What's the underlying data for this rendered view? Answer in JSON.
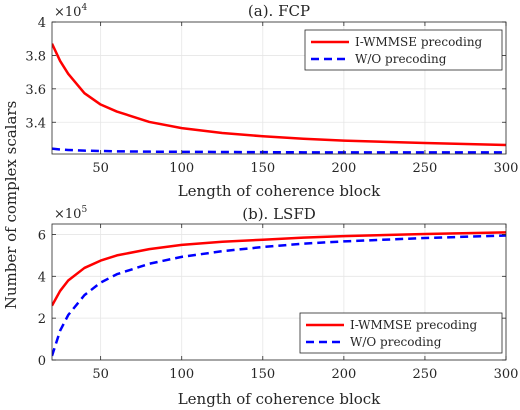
{
  "figure": {
    "ylabel": "Number of complex scalars"
  },
  "chart_data": [
    {
      "type": "line",
      "title": "(a). FCP",
      "xlabel": "Length of coherence block",
      "ylabel": "Number of complex scalars",
      "xlim": [
        20,
        300
      ],
      "ylim": [
        32100,
        40000
      ],
      "xticks": [
        "50",
        "100",
        "150",
        "200",
        "250",
        "300"
      ],
      "yticks": [
        "3.4",
        "3.6",
        "3.8",
        "4"
      ],
      "ytick_values": [
        34000,
        36000,
        38000,
        40000
      ],
      "y_multiplier": {
        "base": "×10",
        "exponent": "4"
      },
      "grid": true,
      "legend": "top-right",
      "x": [
        20,
        25,
        30,
        40,
        50,
        60,
        80,
        100,
        125,
        150,
        175,
        200,
        250,
        300
      ],
      "series": [
        {
          "name": "I-WMMSE precoding",
          "color": "#ff0000",
          "style": "solid",
          "values": [
            38700,
            37670,
            36900,
            35740,
            35060,
            34640,
            34020,
            33650,
            33360,
            33160,
            33010,
            32900,
            32760,
            32640
          ]
        },
        {
          "name": "W/O precoding",
          "color": "#0000ff",
          "style": "dashed",
          "values": [
            32420,
            32370,
            32340,
            32300,
            32280,
            32260,
            32240,
            32230,
            32220,
            32210,
            32200,
            32200,
            32200,
            32200
          ]
        }
      ]
    },
    {
      "type": "line",
      "title": "(b). LSFD",
      "xlabel": "Length of coherence block",
      "ylabel": "Number of complex scalars",
      "xlim": [
        20,
        300
      ],
      "ylim": [
        0,
        650000
      ],
      "xticks": [
        "50",
        "100",
        "150",
        "200",
        "250",
        "300"
      ],
      "yticks": [
        "0",
        "2",
        "4",
        "6"
      ],
      "ytick_values": [
        0,
        200000,
        400000,
        600000
      ],
      "y_multiplier": {
        "base": "×10",
        "exponent": "5"
      },
      "grid": true,
      "legend": "bottom-right",
      "x": [
        20,
        25,
        30,
        40,
        50,
        60,
        80,
        100,
        125,
        150,
        175,
        200,
        250,
        300
      ],
      "series": [
        {
          "name": "I-WMMSE precoding",
          "color": "#ff0000",
          "style": "solid",
          "values": [
            260000,
            330000,
            380000,
            440000,
            475000,
            500000,
            530000,
            550000,
            565000,
            575000,
            585000,
            592000,
            602000,
            610000
          ]
        },
        {
          "name": "W/O precoding",
          "color": "#0000ff",
          "style": "dashed",
          "values": [
            20000,
            140000,
            215000,
            310000,
            370000,
            410000,
            460000,
            493000,
            520000,
            540000,
            556000,
            567000,
            583000,
            595000
          ]
        }
      ]
    }
  ]
}
